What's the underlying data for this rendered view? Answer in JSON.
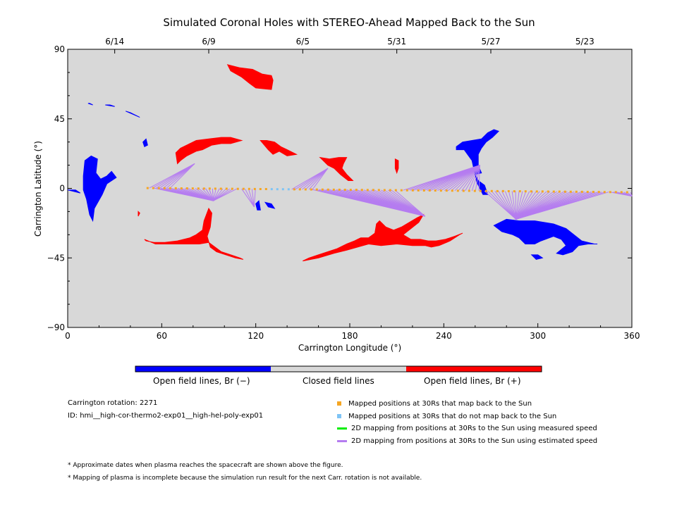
{
  "title": "Simulated Coronal Holes with STEREO-Ahead Mapped Back to the Sun",
  "colors": {
    "background_plot": "#d8d8d8",
    "negative_hole": "#0000ff",
    "positive_hole": "#ff0000",
    "mapped_ok": "#f5a623",
    "mapped_not": "#7ec4f5",
    "measured_line": "#00ee00",
    "estimated_line": "#b57cf0"
  },
  "colorbar": {
    "segments": [
      {
        "label": "Open field lines, Br (−)",
        "color": "#0000ff"
      },
      {
        "label": "Closed field lines",
        "color": "#d8d8d8"
      },
      {
        "label": "Open field lines, Br (+)",
        "color": "#ff0000"
      }
    ]
  },
  "info": {
    "rotation": "Carrington rotation: 2271",
    "id": "ID: hmi__high-cor-thermo2-exp01__high-hel-poly-exp01"
  },
  "legend": [
    {
      "label": "Mapped positions at 30Rs that map back to the Sun",
      "kind": "square",
      "color": "#f5a623"
    },
    {
      "label": "Mapped positions at 30Rs that do not map back to the Sun",
      "kind": "square",
      "color": "#7ec4f5"
    },
    {
      "label": "2D mapping from positions at 30Rs to the Sun using measured speed",
      "kind": "line",
      "color": "#00ee00"
    },
    {
      "label": "2D mapping from positions at 30Rs to the Sun using estimated speed",
      "kind": "line",
      "color": "#b57cf0"
    }
  ],
  "notes": [
    "* Approximate dates when plasma reaches the spacecraft are shown above the figure.",
    "* Mapping of plasma is incomplete because the simulation run result for the next Carr. rotation is not available."
  ],
  "chart_data": {
    "type": "scatter",
    "xlabel": "Carrington Longitude (°)",
    "ylabel": "Carrington Latitude (°)",
    "xlim": [
      0,
      360
    ],
    "ylim": [
      -90,
      90
    ],
    "xticks": [
      0,
      60,
      120,
      180,
      240,
      300,
      360
    ],
    "yticks": [
      -90,
      -45,
      0,
      45,
      90
    ],
    "top_axis_dates": [
      {
        "lon": 30,
        "label": "6/14"
      },
      {
        "lon": 90,
        "label": "6/9"
      },
      {
        "lon": 150,
        "label": "6/5"
      },
      {
        "lon": 210,
        "label": "5/31"
      },
      {
        "lon": 270,
        "label": "5/27"
      },
      {
        "lon": 330,
        "label": "5/23"
      }
    ],
    "mapped_points": {
      "lon_start": 51,
      "lon_end": 358,
      "step": 3.6,
      "lat_start": 0.2,
      "lat_end": -2.5,
      "not_mapped_lon_range": [
        129,
        142
      ]
    },
    "mapping_groups": [
      {
        "from": [
          52,
          67
        ],
        "to": [
          81,
          16
        ]
      },
      {
        "from": [
          88,
          93
        ],
        "to": [
          93,
          -8
        ]
      },
      {
        "from": [
          55,
          108
        ],
        "to": [
          93,
          -8
        ]
      },
      {
        "from": [
          111,
          121
        ],
        "to": [
          119,
          -12
        ]
      },
      {
        "from": [
          143,
          158
        ],
        "to": [
          166,
          13
        ]
      },
      {
        "from": [
          156,
          210
        ],
        "to": [
          228,
          -18
        ]
      },
      {
        "from": [
          214,
          264
        ],
        "to": [
          263,
          15
        ]
      },
      {
        "from": [
          266,
          346
        ],
        "to": [
          286,
          -20
        ]
      },
      {
        "from": [
          346,
          360
        ],
        "to": [
          360,
          -5
        ]
      }
    ],
    "coronal_holes": [
      {
        "polarity": "negative",
        "points": [
          [
            11,
            18
          ],
          [
            15,
            21
          ],
          [
            19,
            19
          ],
          [
            18,
            10
          ],
          [
            21,
            6
          ],
          [
            25,
            8
          ],
          [
            28,
            11
          ],
          [
            31,
            7
          ],
          [
            25,
            3
          ],
          [
            22,
            -4
          ],
          [
            17,
            -13
          ],
          [
            16,
            -21
          ],
          [
            14,
            -17
          ],
          [
            12,
            -7
          ],
          [
            10,
            -1
          ],
          [
            10,
            8
          ]
        ]
      },
      {
        "polarity": "negative",
        "points": [
          [
            0,
            -1
          ],
          [
            5,
            -1
          ],
          [
            8,
            -3
          ],
          [
            4,
            -2
          ]
        ]
      },
      {
        "polarity": "negative",
        "points": [
          [
            48,
            30
          ],
          [
            50,
            32
          ],
          [
            51,
            28
          ],
          [
            49,
            27
          ]
        ]
      },
      {
        "polarity": "negative",
        "points": [
          [
            13,
            55
          ],
          [
            16,
            54
          ],
          [
            14,
            55
          ]
        ]
      },
      {
        "polarity": "negative",
        "points": [
          [
            24,
            54
          ],
          [
            30,
            53
          ],
          [
            27,
            54
          ]
        ]
      },
      {
        "polarity": "negative",
        "points": [
          [
            37,
            50
          ],
          [
            46,
            46
          ],
          [
            40,
            49
          ]
        ]
      },
      {
        "polarity": "negative",
        "points": [
          [
            120,
            -10
          ],
          [
            122,
            -8
          ],
          [
            123,
            -14
          ],
          [
            121,
            -14
          ]
        ]
      },
      {
        "polarity": "negative",
        "points": [
          [
            126,
            -9
          ],
          [
            130,
            -10
          ],
          [
            132,
            -13
          ],
          [
            128,
            -12
          ]
        ]
      },
      {
        "polarity": "negative",
        "points": [
          [
            248,
            27
          ],
          [
            252,
            30
          ],
          [
            258,
            31
          ],
          [
            264,
            32
          ],
          [
            268,
            36
          ],
          [
            272,
            38
          ],
          [
            275,
            37
          ],
          [
            271,
            33
          ],
          [
            267,
            30
          ],
          [
            264,
            26
          ],
          [
            262,
            22
          ],
          [
            262,
            15
          ],
          [
            264,
            10
          ],
          [
            260,
            9
          ],
          [
            262,
            5
          ],
          [
            266,
            2
          ],
          [
            268,
            -4
          ],
          [
            265,
            -4
          ],
          [
            261,
            4
          ],
          [
            258,
            18
          ],
          [
            253,
            25
          ],
          [
            248,
            25
          ]
        ]
      },
      {
        "polarity": "negative",
        "points": [
          [
            272,
            -24
          ],
          [
            280,
            -20
          ],
          [
            288,
            -21
          ],
          [
            298,
            -21
          ],
          [
            310,
            -23
          ],
          [
            318,
            -26
          ],
          [
            328,
            -34
          ],
          [
            336,
            -36
          ],
          [
            338,
            -36
          ],
          [
            332,
            -36
          ],
          [
            326,
            -37
          ],
          [
            322,
            -41
          ],
          [
            316,
            -43
          ],
          [
            312,
            -42
          ],
          [
            318,
            -37
          ],
          [
            315,
            -33
          ],
          [
            310,
            -31
          ],
          [
            302,
            -34
          ],
          [
            298,
            -36
          ],
          [
            292,
            -36
          ],
          [
            288,
            -32
          ],
          [
            284,
            -30
          ],
          [
            277,
            -28
          ]
        ]
      },
      {
        "polarity": "negative",
        "points": [
          [
            296,
            -43
          ],
          [
            299,
            -46
          ],
          [
            303,
            -45
          ],
          [
            300,
            -43
          ]
        ]
      },
      {
        "polarity": "positive",
        "points": [
          [
            102,
            80
          ],
          [
            110,
            78
          ],
          [
            118,
            77
          ],
          [
            124,
            74
          ],
          [
            130,
            73
          ],
          [
            131,
            70
          ],
          [
            130,
            64
          ],
          [
            120,
            65
          ],
          [
            116,
            68
          ],
          [
            111,
            72
          ],
          [
            104,
            76
          ]
        ]
      },
      {
        "polarity": "positive",
        "points": [
          [
            69,
            23
          ],
          [
            72,
            26
          ],
          [
            76,
            28
          ],
          [
            82,
            31
          ],
          [
            90,
            32
          ],
          [
            98,
            33
          ],
          [
            104,
            33
          ],
          [
            111,
            31
          ],
          [
            104,
            29
          ],
          [
            98,
            29
          ],
          [
            92,
            28
          ],
          [
            86,
            25
          ],
          [
            82,
            24
          ],
          [
            76,
            21
          ],
          [
            72,
            18
          ],
          [
            70,
            16
          ]
        ]
      },
      {
        "polarity": "positive",
        "points": [
          [
            123,
            31
          ],
          [
            127,
            31
          ],
          [
            132,
            30
          ],
          [
            136,
            27
          ],
          [
            140,
            25
          ],
          [
            146,
            22
          ],
          [
            140,
            21
          ],
          [
            135,
            24
          ],
          [
            131,
            22
          ],
          [
            128,
            25
          ]
        ]
      },
      {
        "polarity": "positive",
        "points": [
          [
            161,
            20
          ],
          [
            167,
            19
          ],
          [
            173,
            20
          ],
          [
            178,
            20
          ],
          [
            176,
            16
          ],
          [
            175,
            13
          ],
          [
            178,
            9
          ],
          [
            182,
            5
          ],
          [
            179,
            5
          ],
          [
            174,
            9
          ],
          [
            170,
            13
          ],
          [
            166,
            15
          ]
        ]
      },
      {
        "polarity": "positive",
        "points": [
          [
            209,
            19
          ],
          [
            211,
            18
          ],
          [
            211,
            13
          ],
          [
            210,
            10
          ],
          [
            209,
            13
          ]
        ]
      },
      {
        "polarity": "positive",
        "points": [
          [
            45,
            -15
          ],
          [
            46,
            -16
          ],
          [
            45,
            -18
          ]
        ]
      },
      {
        "polarity": "positive",
        "points": [
          [
            49,
            -33
          ],
          [
            56,
            -36
          ],
          [
            64,
            -36
          ],
          [
            71,
            -36
          ],
          [
            78,
            -36
          ],
          [
            84,
            -36
          ],
          [
            90,
            -35
          ],
          [
            94,
            -38
          ],
          [
            98,
            -41
          ],
          [
            104,
            -43
          ],
          [
            110,
            -45
          ],
          [
            112,
            -46
          ],
          [
            107,
            -45
          ],
          [
            101,
            -43
          ],
          [
            95,
            -41
          ],
          [
            91,
            -38
          ],
          [
            89,
            -31
          ],
          [
            91,
            -25
          ],
          [
            92,
            -16
          ],
          [
            90,
            -13
          ],
          [
            87,
            -21
          ],
          [
            86,
            -27
          ],
          [
            82,
            -30
          ],
          [
            78,
            -32
          ],
          [
            70,
            -34
          ],
          [
            62,
            -35
          ],
          [
            55,
            -35
          ],
          [
            50,
            -34
          ]
        ]
      },
      {
        "polarity": "positive",
        "points": [
          [
            150,
            -47
          ],
          [
            160,
            -45
          ],
          [
            170,
            -42
          ],
          [
            178,
            -40
          ],
          [
            185,
            -38
          ],
          [
            192,
            -36
          ],
          [
            200,
            -37
          ],
          [
            210,
            -36
          ],
          [
            220,
            -37
          ],
          [
            228,
            -37
          ],
          [
            232,
            -38
          ],
          [
            237,
            -37
          ],
          [
            244,
            -34
          ],
          [
            250,
            -30
          ],
          [
            252,
            -29
          ],
          [
            247,
            -31
          ],
          [
            241,
            -33
          ],
          [
            235,
            -34
          ],
          [
            230,
            -34
          ],
          [
            225,
            -33
          ],
          [
            219,
            -33
          ],
          [
            214,
            -30
          ],
          [
            219,
            -26
          ],
          [
            224,
            -22
          ],
          [
            227,
            -17
          ],
          [
            223,
            -19
          ],
          [
            218,
            -22
          ],
          [
            213,
            -25
          ],
          [
            208,
            -27
          ],
          [
            203,
            -25
          ],
          [
            199,
            -21
          ],
          [
            197,
            -23
          ],
          [
            196,
            -29
          ],
          [
            192,
            -32
          ],
          [
            187,
            -32
          ],
          [
            183,
            -34
          ],
          [
            178,
            -36
          ],
          [
            172,
            -39
          ],
          [
            166,
            -41
          ],
          [
            160,
            -43
          ],
          [
            154,
            -45
          ]
        ]
      }
    ]
  }
}
